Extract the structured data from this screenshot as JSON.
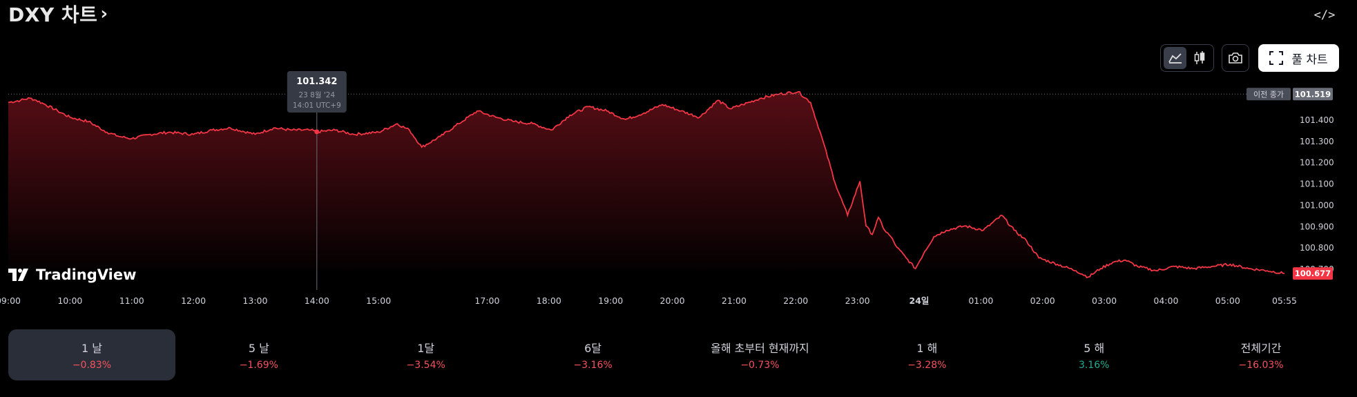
{
  "header": {
    "title": "DXY 차트",
    "title_chevron": "›",
    "embed_label": "</>"
  },
  "toolbar": {
    "line_icon": "area-chart-icon",
    "candle_icon": "candlestick-icon",
    "camera_icon": "camera-icon",
    "full_chart_label": "풀 차트",
    "full_chart_icon": "fullscreen-icon"
  },
  "logo": {
    "text": "TradingView",
    "icon": "tradingview-logo-icon"
  },
  "tooltip": {
    "value": "101.342",
    "date": "23 8월 '24",
    "time": "14:01 UTC+9"
  },
  "price_badges": {
    "prev_close_label": "이전 종가",
    "prev_close_value": "101.519",
    "last_value": "100.677"
  },
  "colors": {
    "line": "#f23645",
    "area_top": "#5a0e16",
    "area_bottom": "#000000",
    "active_tab": "#2a2e39",
    "negative": "#f7525f",
    "positive": "#22ab94"
  },
  "chart_data": {
    "type": "area",
    "title": "DXY 차트",
    "xlabel": "",
    "ylabel": "",
    "ylim": [
      100.67,
      101.55
    ],
    "grid": false,
    "y_ticks": [
      "101.400",
      "101.300",
      "101.200",
      "101.100",
      "101.000",
      "100.900",
      "100.800",
      "100.700"
    ],
    "y_tick_values": [
      101.4,
      101.3,
      101.2,
      101.1,
      101.0,
      100.9,
      100.8,
      100.7
    ],
    "x_tick_labels": [
      "09:00",
      "10:00",
      "11:00",
      "12:00",
      "13:00",
      "14:00",
      "15:00",
      "17:00",
      "18:00",
      "19:00",
      "20:00",
      "21:00",
      "22:00",
      "23:00",
      "24일",
      "01:00",
      "02:00",
      "03:00",
      "04:00",
      "05:00",
      "05:55"
    ],
    "x_tick_hours": [
      0,
      1,
      2,
      3,
      4,
      5,
      6,
      7.76,
      8.76,
      9.76,
      10.76,
      11.76,
      12.76,
      13.76,
      14.76,
      15.76,
      16.76,
      17.76,
      18.76,
      19.76,
      20.68
    ],
    "prev_close": 101.519,
    "last": 100.677,
    "crosshair_hour": 5.0,
    "series": [
      {
        "x_hours": [
          0,
          0.2,
          0.35,
          0.45,
          0.6,
          0.8,
          1.0,
          1.3,
          1.6,
          1.8,
          2.0,
          2.3,
          2.6,
          3.0,
          3.3,
          3.6,
          4.0,
          4.3,
          4.6,
          4.9,
          5.0,
          5.3,
          5.6,
          6.0,
          6.3,
          6.5,
          6.7,
          7.0,
          7.3,
          7.6,
          7.9,
          8.2,
          8.5,
          8.8,
          9.1,
          9.4,
          9.7,
          10.0,
          10.3,
          10.6,
          10.9,
          11.2,
          11.5,
          11.7,
          11.9,
          12.2,
          12.5,
          12.8,
          13.0,
          13.2,
          13.4,
          13.6,
          13.8,
          13.9,
          14.0,
          14.1,
          14.2,
          14.3,
          14.4,
          14.55,
          14.7,
          14.85,
          15.0,
          15.2,
          15.5,
          15.8,
          16.1,
          16.3,
          16.5,
          16.7,
          17.0,
          17.3,
          17.5,
          17.7,
          17.9,
          18.1,
          18.3,
          18.6,
          18.9,
          19.2,
          19.5,
          19.8,
          20.1,
          20.4,
          20.68
        ],
        "values": [
          101.48,
          101.49,
          101.5,
          101.49,
          101.47,
          101.44,
          101.41,
          101.39,
          101.34,
          101.32,
          101.31,
          101.33,
          101.34,
          101.33,
          101.35,
          101.36,
          101.33,
          101.36,
          101.35,
          101.35,
          101.342,
          101.35,
          101.33,
          101.34,
          101.38,
          101.35,
          101.27,
          101.32,
          101.38,
          101.44,
          101.41,
          101.39,
          101.38,
          101.35,
          101.42,
          101.46,
          101.44,
          101.4,
          101.43,
          101.47,
          101.44,
          101.41,
          101.49,
          101.45,
          101.47,
          101.5,
          101.52,
          101.53,
          101.48,
          101.3,
          101.1,
          100.95,
          101.11,
          100.9,
          100.86,
          100.94,
          100.88,
          100.85,
          100.8,
          100.75,
          100.7,
          100.78,
          100.85,
          100.88,
          100.9,
          100.88,
          100.95,
          100.88,
          100.83,
          100.75,
          100.72,
          100.69,
          100.66,
          100.7,
          100.73,
          100.74,
          100.71,
          100.69,
          100.71,
          100.7,
          100.71,
          100.72,
          100.7,
          100.69,
          100.677
        ]
      }
    ]
  },
  "periods": [
    {
      "label": "1 날",
      "value": "−0.83%",
      "sign": "neg",
      "active": true
    },
    {
      "label": "5 날",
      "value": "−1.69%",
      "sign": "neg",
      "active": false
    },
    {
      "label": "1달",
      "value": "−3.54%",
      "sign": "neg",
      "active": false
    },
    {
      "label": "6달",
      "value": "−3.16%",
      "sign": "neg",
      "active": false
    },
    {
      "label": "올해 초부터 현재까지",
      "value": "−0.73%",
      "sign": "neg",
      "active": false
    },
    {
      "label": "1 해",
      "value": "−3.28%",
      "sign": "neg",
      "active": false
    },
    {
      "label": "5 해",
      "value": "3.16%",
      "sign": "pos",
      "active": false
    },
    {
      "label": "전체기간",
      "value": "−16.03%",
      "sign": "neg",
      "active": false
    }
  ]
}
